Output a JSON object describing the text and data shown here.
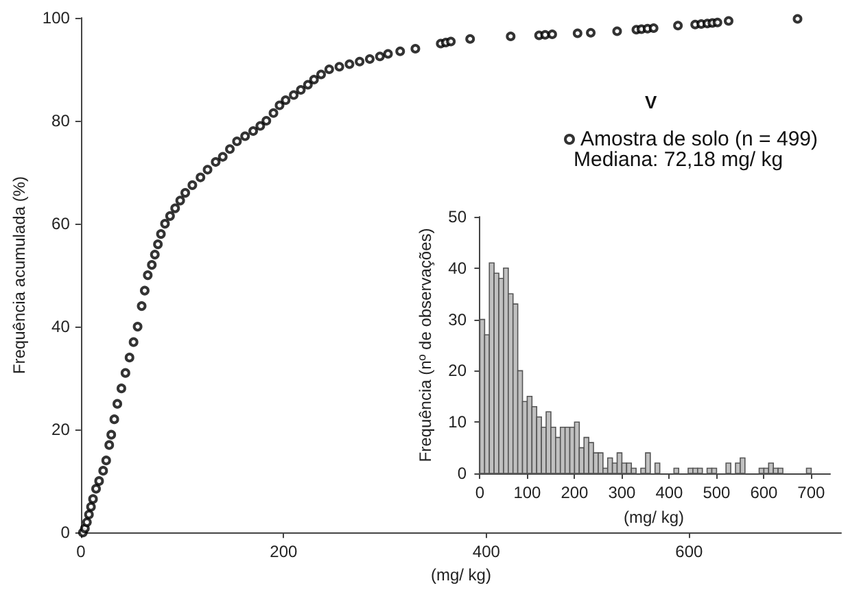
{
  "chart_data": [
    {
      "type": "scatter",
      "xlabel": "(mg/ kg)",
      "ylabel": "Frequência acumulada (%)",
      "legend_title": "V",
      "legend": "right",
      "marker": "circle",
      "grid": false,
      "annotations": [
        "Mediana: 72,18 mg/ kg"
      ],
      "xlim": [
        0,
        750
      ],
      "xticks": [
        0,
        200,
        400,
        600
      ],
      "ylim": [
        0,
        100
      ],
      "yticks": [
        0,
        20,
        40,
        60,
        80,
        100
      ],
      "series": [
        {
          "name": "Amostra de solo (n = 499)",
          "color": "#000000",
          "x": [
            2,
            4,
            6,
            8,
            10,
            12,
            15,
            18,
            22,
            25,
            28,
            30,
            33,
            36,
            40,
            44,
            48,
            52,
            56,
            60,
            63,
            66,
            70,
            73,
            76,
            79,
            83,
            88,
            93,
            98,
            103,
            110,
            118,
            125,
            133,
            140,
            147,
            154,
            162,
            170,
            177,
            183,
            190,
            196,
            202,
            210,
            217,
            224,
            230,
            237,
            245,
            255,
            265,
            275,
            285,
            295,
            303,
            315,
            330,
            355,
            360,
            365,
            384,
            424,
            452,
            458,
            465,
            490,
            503,
            529,
            548,
            553,
            559,
            565,
            589,
            606,
            612,
            618,
            623,
            628,
            639,
            707
          ],
          "values": [
            0,
            0.8,
            2,
            3.5,
            5,
            6.5,
            8.5,
            10,
            12,
            14,
            17,
            19,
            22,
            25,
            28,
            31,
            34,
            37,
            40,
            44,
            47,
            50,
            52,
            54,
            56,
            58,
            60,
            61.5,
            63,
            64.5,
            66,
            67.5,
            69,
            70.5,
            72,
            73,
            74.5,
            76,
            77,
            78,
            79,
            80,
            81.5,
            83,
            84,
            85,
            86,
            87,
            88,
            89,
            90,
            90.5,
            91,
            91.5,
            92,
            92.5,
            93,
            93.5,
            94,
            95,
            95.2,
            95.4,
            95.9,
            96.4,
            96.6,
            96.7,
            96.8,
            97,
            97.1,
            97.4,
            97.7,
            97.8,
            97.9,
            98,
            98.5,
            98.7,
            98.8,
            98.9,
            99,
            99.1,
            99.4,
            99.8
          ]
        }
      ]
    },
    {
      "type": "histogram",
      "xlabel": "(mg/ kg)",
      "ylabel": "Frequência (nº de observações)",
      "grid": false,
      "color": "#c0c0c0",
      "xlim": [
        -5,
        740
      ],
      "xticks": [
        0,
        100,
        200,
        300,
        400,
        500,
        600,
        700
      ],
      "ylim": [
        0,
        50
      ],
      "yticks": [
        0,
        10,
        20,
        30,
        40,
        50
      ],
      "bins": [
        0,
        10,
        20,
        30,
        40,
        50,
        60,
        70,
        80,
        90,
        100,
        110,
        120,
        130,
        140,
        150,
        160,
        170,
        180,
        190,
        200,
        210,
        220,
        230,
        240,
        250,
        260,
        270,
        280,
        290,
        300,
        310,
        320,
        330,
        340,
        350,
        360,
        370,
        380,
        390,
        400,
        410,
        420,
        430,
        440,
        450,
        460,
        470,
        480,
        490,
        500,
        510,
        520,
        530,
        540,
        550,
        560,
        570,
        580,
        590,
        600,
        610,
        620,
        630,
        640,
        650,
        660,
        670,
        680,
        690,
        700
      ],
      "values": [
        30,
        27,
        41,
        39,
        38,
        40,
        35,
        33,
        20,
        14,
        15,
        13,
        11,
        9,
        12,
        9,
        7,
        9,
        9,
        9,
        10,
        5,
        7,
        6,
        4,
        4,
        1,
        3,
        2,
        4,
        2,
        2,
        1,
        0,
        1,
        4,
        0,
        2,
        0,
        0,
        0,
        1,
        0,
        0,
        1,
        1,
        1,
        0,
        1,
        1,
        0,
        0,
        2,
        0,
        2,
        3,
        0,
        0,
        0,
        1,
        1,
        2,
        1,
        1,
        0,
        0,
        0,
        0,
        0,
        1
      ]
    }
  ]
}
